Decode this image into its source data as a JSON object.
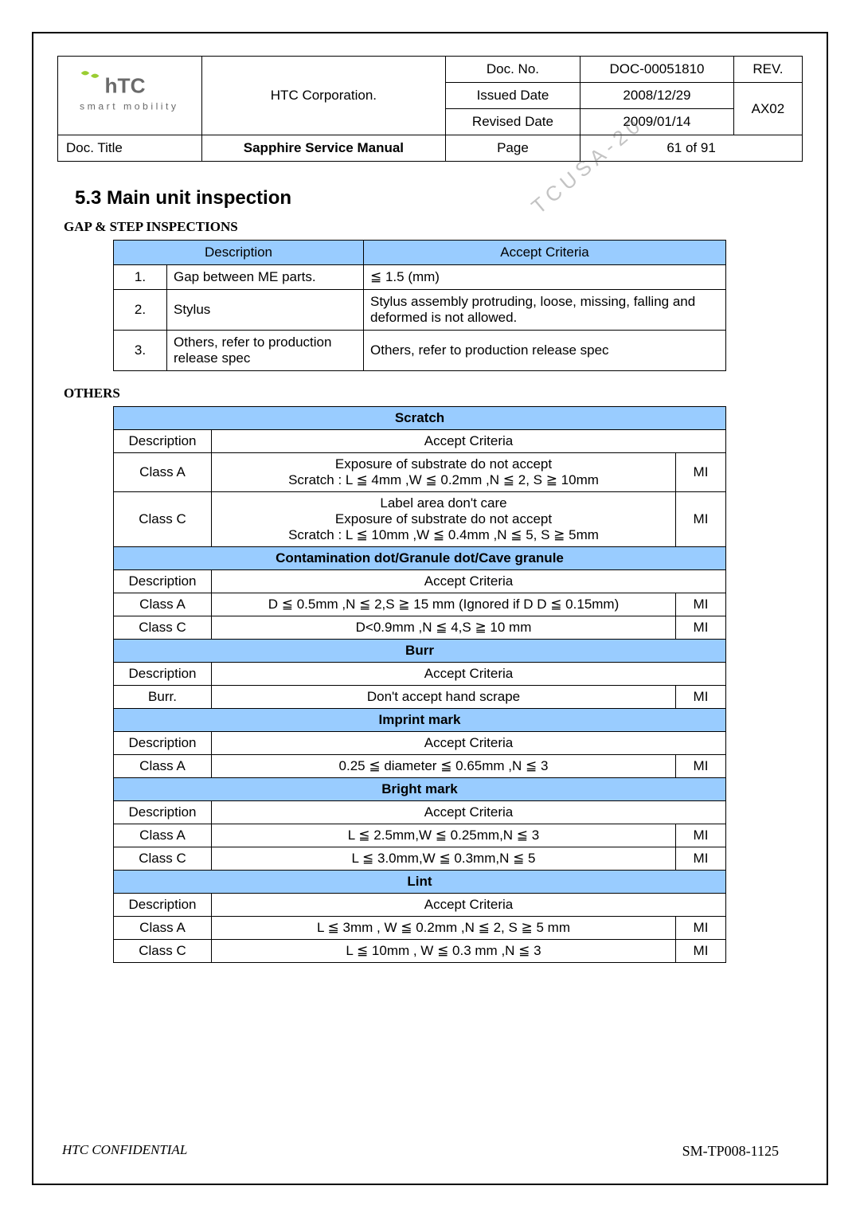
{
  "colors": {
    "header_blue": "#99ccff"
  },
  "logo": {
    "tagline": "smart mobility",
    "brand": "hTC"
  },
  "header": {
    "corporation": "HTC Corporation.",
    "doc_no_label": "Doc. No.",
    "doc_no": "DOC-00051810",
    "rev_label": "REV.",
    "rev": "AX02",
    "issued_label": "Issued Date",
    "issued": "2008/12/29",
    "revised_label": "Revised Date",
    "revised": "2009/01/14",
    "doc_title_label": "Doc. Title",
    "doc_title": "Sapphire Service Manual",
    "page_label": "Page",
    "page": "61  of  91"
  },
  "watermark": "TCUSA-20",
  "section": "5.3  Main unit inspection",
  "gap": {
    "title": "GAP & STEP INSPECTIONS",
    "col_desc": "Description",
    "col_crit": "Accept Criteria",
    "rows": [
      {
        "n": "1.",
        "desc": "Gap between ME parts.",
        "crit": "≦  1.5 (mm)"
      },
      {
        "n": "2.",
        "desc": "Stylus",
        "crit": "Stylus assembly protruding, loose, missing, falling and deformed is not allowed."
      },
      {
        "n": "3.",
        "desc": "Others, refer to production release spec",
        "crit": "Others, refer to production release spec"
      }
    ]
  },
  "others_title": "OTHERS",
  "others": {
    "labels": {
      "description": "Description",
      "accept": "Accept Criteria",
      "mi": "MI"
    },
    "sections": [
      {
        "name": "Scratch",
        "rows": [
          {
            "desc": "Class A",
            "crit": "Exposure of substrate do not accept\nScratch : L ≦ 4mm ,W ≦ 0.2mm ,N ≦ 2, S ≧ 10mm",
            "mi": "MI"
          },
          {
            "desc": "Class C",
            "crit": "Label area don't care\nExposure of substrate do not accept\nScratch : L ≦ 10mm ,W ≦ 0.4mm ,N ≦ 5, S ≧ 5mm",
            "mi": "MI"
          }
        ]
      },
      {
        "name": "Contamination dot/Granule dot/Cave granule",
        "rows": [
          {
            "desc": "Class A",
            "crit": "D ≦ 0.5mm ,N ≦ 2,S ≧ 15 mm (Ignored if D D ≦ 0.15mm)",
            "mi": "MI"
          },
          {
            "desc": "Class C",
            "crit": "D<0.9mm ,N ≦ 4,S ≧ 10 mm",
            "mi": "MI"
          }
        ]
      },
      {
        "name": "Burr",
        "rows": [
          {
            "desc": "Burr.",
            "crit": "Don't accept hand scrape",
            "mi": "MI"
          }
        ]
      },
      {
        "name": "Imprint mark",
        "rows": [
          {
            "desc": "Class A",
            "crit": "0.25 ≦ diameter ≦ 0.65mm ,N ≦ 3",
            "mi": "MI"
          }
        ]
      },
      {
        "name": "Bright mark",
        "rows": [
          {
            "desc": "Class A",
            "crit": "L ≦ 2.5mm,W ≦ 0.25mm,N ≦ 3",
            "mi": "MI"
          },
          {
            "desc": "Class C",
            "crit": "L ≦ 3.0mm,W ≦ 0.3mm,N ≦ 5",
            "mi": "MI"
          }
        ]
      },
      {
        "name": "Lint",
        "rows": [
          {
            "desc": "Class A",
            "crit": "L ≦ 3mm , W ≦ 0.2mm ,N ≦ 2, S ≧ 5 mm",
            "mi": "MI"
          },
          {
            "desc": "Class C",
            "crit": "L ≦ 10mm , W ≦ 0.3 mm ,N ≦ 3",
            "mi": "MI"
          }
        ]
      }
    ]
  },
  "footer": {
    "left": "HTC CONFIDENTIAL",
    "right": "SM-TP008-1125"
  }
}
